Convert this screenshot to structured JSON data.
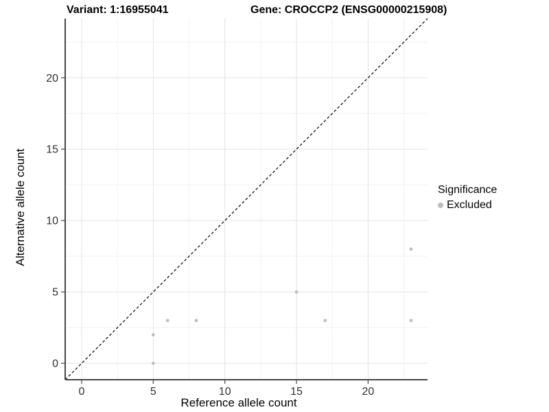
{
  "chart_data": {
    "type": "scatter",
    "title_left": "Variant: 1:16955041",
    "title_right": "Gene: CROCCP2 (ENSG00000215908)",
    "xlabel": "Reference allele count",
    "ylabel": "Alternative allele count",
    "x_ticks": [
      0,
      5,
      10,
      15,
      20
    ],
    "y_ticks": [
      0,
      5,
      10,
      15,
      20
    ],
    "minor_ticks": [
      2.5,
      7.5,
      12.5,
      17.5,
      22.5
    ],
    "axis_domain": [
      -1.15,
      24.15
    ],
    "grid": true,
    "reference_line": {
      "equation": "y = x",
      "style": "dashed",
      "color": "#000000"
    },
    "series": [
      {
        "name": "Excluded",
        "color": "#bebebe",
        "points": [
          [
            5,
            0
          ],
          [
            5,
            2
          ],
          [
            6,
            3
          ],
          [
            8,
            3
          ],
          [
            15,
            5
          ],
          [
            17,
            3
          ],
          [
            23,
            8
          ],
          [
            23,
            3
          ]
        ]
      }
    ],
    "legend": {
      "title": "Significance",
      "position": "right",
      "entries": [
        {
          "label": "Excluded",
          "color": "#bebebe",
          "marker": "circle"
        }
      ]
    },
    "colors": {
      "grid_major": "#e3e3e3",
      "grid_minor": "#f1f1f1",
      "axis_line": "#454545",
      "tick_text": "#303030",
      "background": "#ffffff"
    }
  }
}
